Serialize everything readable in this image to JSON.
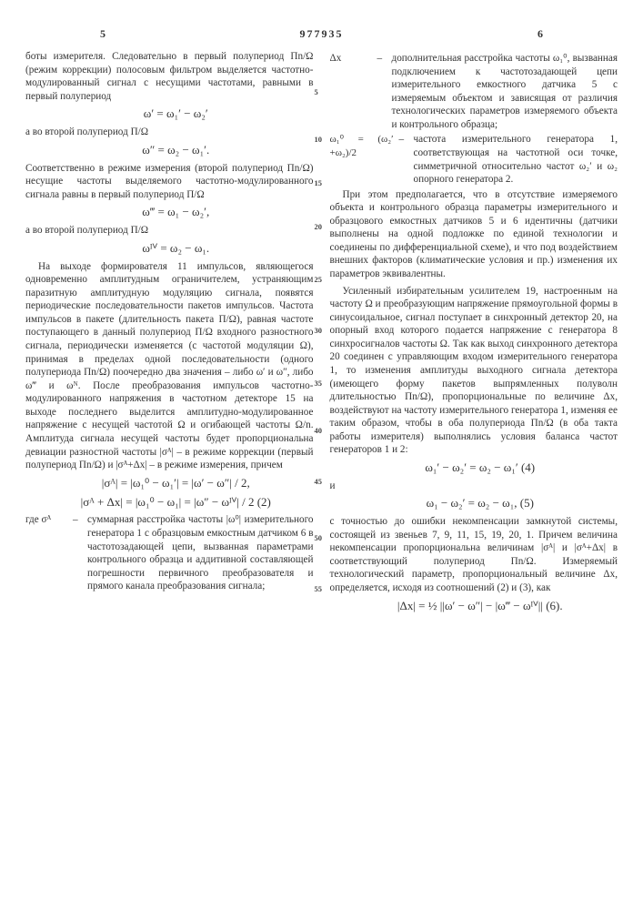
{
  "document_number": "977935",
  "col_left_no": "5",
  "col_right_no": "6",
  "line_markers": [
    "5",
    "10",
    "15",
    "20",
    "25",
    "30",
    "35",
    "40",
    "45",
    "50",
    "55"
  ],
  "line_marker_offsets": [
    40,
    92,
    140,
    188,
    246,
    302,
    360,
    412,
    468,
    530,
    586
  ],
  "colors": {
    "text": "#333333",
    "background": "#ffffff"
  },
  "font_size_body": 11.2,
  "font_size_formula": 13,
  "left": {
    "p1": "боты измерителя. Следовательно в первый полупериод Пn/Ω (режим коррекции) полосовым фильтром выделяется частотно-модулированный сигнал с несущими частотами, равными в первый полупериод",
    "f1": "ω′ = ω₁′ − ω₂′",
    "p2": "а во второй полупериод П/Ω",
    "f2": "ω″ = ω₂ − ω₁′.",
    "p3": "Соответственно в режиме измерения (второй полупериод Пn/Ω) несущие частоты выделяемого частотно-модулированного сигнала равны в первый полупериод П/Ω",
    "f3": "ω‴ = ω₁ − ω₂′,",
    "p4": "а во второй полупериод П/Ω",
    "f4": "ωᴵⱽ = ω₂ − ω₁.",
    "p5": "На выходе формирователя 11 импульсов, являющегося одновременно амплитудным ограничителем, устраняющим паразитную амплитудную модуляцию сигнала, появятся периодические последовательности пакетов импульсов. Частота импульсов в пакете (длительность пакета П/Ω), равная частоте поступающего в данный полупериод П/Ω входного разностного сигнала, периодически изменяется (с частотой модуляции Ω), принимая в пределах одной последовательности (одного полупериода Пn/Ω) поочередно два значения – либо ω′ и ω″, либо ω‴ и ωᴺ. После преобразования импульсов частотно-модулированного напряжения в частотном детекторе 15 на выходе последнего выделится амплитудно-модулированное напряжение с несущей частотой Ω и огибающей частоты Ω/n. Амплитуда сигнала несущей частоты будет пропорциональна девиации разностной частоты |σᴬ| – в режиме коррекции (первый полупериод Пn/Ω) и |σᴬ+Δx| – в режиме измерения, причем",
    "f5": "|σᴬ| = |ω₁⁰ − ω₁′| = |ω′ − ω″| / 2,",
    "f6": "|σᴬ + Δx| = |ω₁⁰ − ω₁| = |ω″ − ωᴵⱽ| / 2  (2)",
    "def_sym": "где σᴬ",
    "def_dash": "–",
    "def_txt": "суммарная расстройка частоты |ω⁰| измерительного генератора 1 с образцовым емкостным датчиком 6 в частотозадающей цепи, вызванная параметрами контрольного образца и аддитивной составляющей погрешности первичного преобразователя и прямого канала преобразования сигнала;"
  },
  "right": {
    "def1_sym": "Δx",
    "def1_dash": "–",
    "def1_txt": "дополнительная расстройка частоты ω₁⁰, вызванная подключением к частотозадающей цепи измерительного емкостного датчика 5 с измеряемым объектом и зависящая от различия технологических параметров измеряемого объекта и контрольного образца;",
    "def2_sym": "ω₁⁰ = (ω₂′+ω₂)/2",
    "def2_dash": "–",
    "def2_txt": "частота измерительного генератора 1, соответствующая на частотной оси точке, симметричной относительно частот ω₂′ и ω₂ опорного генератора 2.",
    "p1": "При этом предполагается, что в отсутствие измеряемого объекта и контрольного образца параметры измерительного и образцового емкостных датчиков 5 и 6 идентичны (датчики выполнены на одной подложке по единой технологии и соединены по дифференциальной схеме), и что под воздействием внешних факторов (климатические условия и пр.) изменения их параметров эквивалентны.",
    "p2": "Усиленный избирательным усилителем 19, настроенным на частоту Ω и преобразующим напряжение прямоугольной формы в синусоидальное, сигнал поступает в синхронный детектор 20, на опорный вход которого подается напряжение с генератора 8 синхросигналов частоты Ω. Так как выход синхронного детектора 20 соединен с управляющим входом измерительного генератора 1, то изменения амплитуды выходного сигнала детектора (имеющего форму пакетов выпрямленных полуволн длительностью Пn/Ω), пропорциональные по величине Δx, воздействуют на частоту измерительного генератора 1, изменяя ее таким образом, чтобы в оба полупериода Пn/Ω (в оба такта работы измерителя) выполнялись условия баланса частот генераторов 1 и 2:",
    "f1": "ω₁′ − ω₂′ = ω₂ − ω₁′   (4)",
    "p3": "и",
    "f2": "ω₁ − ω₂′ = ω₂ − ω₁,   (5)",
    "p4": "с точностью до ошибки некомпенсации замкнутой системы, состоящей из звеньев 7, 9, 11, 15, 19, 20, 1. Причем величина некомпенсации пропорциональна величинам |σᴬ| и |σᴬ+Δx| в соответствующий полупериод Пn/Ω. Измеряемый технологический параметр, пропорциональный величине Δx, определяется, исходя из соотношений (2) и (3), как",
    "f3": "|Δx| = ½ ||ω′ − ω″| − |ω‴ − ωᴵⱽ||   (6)."
  }
}
